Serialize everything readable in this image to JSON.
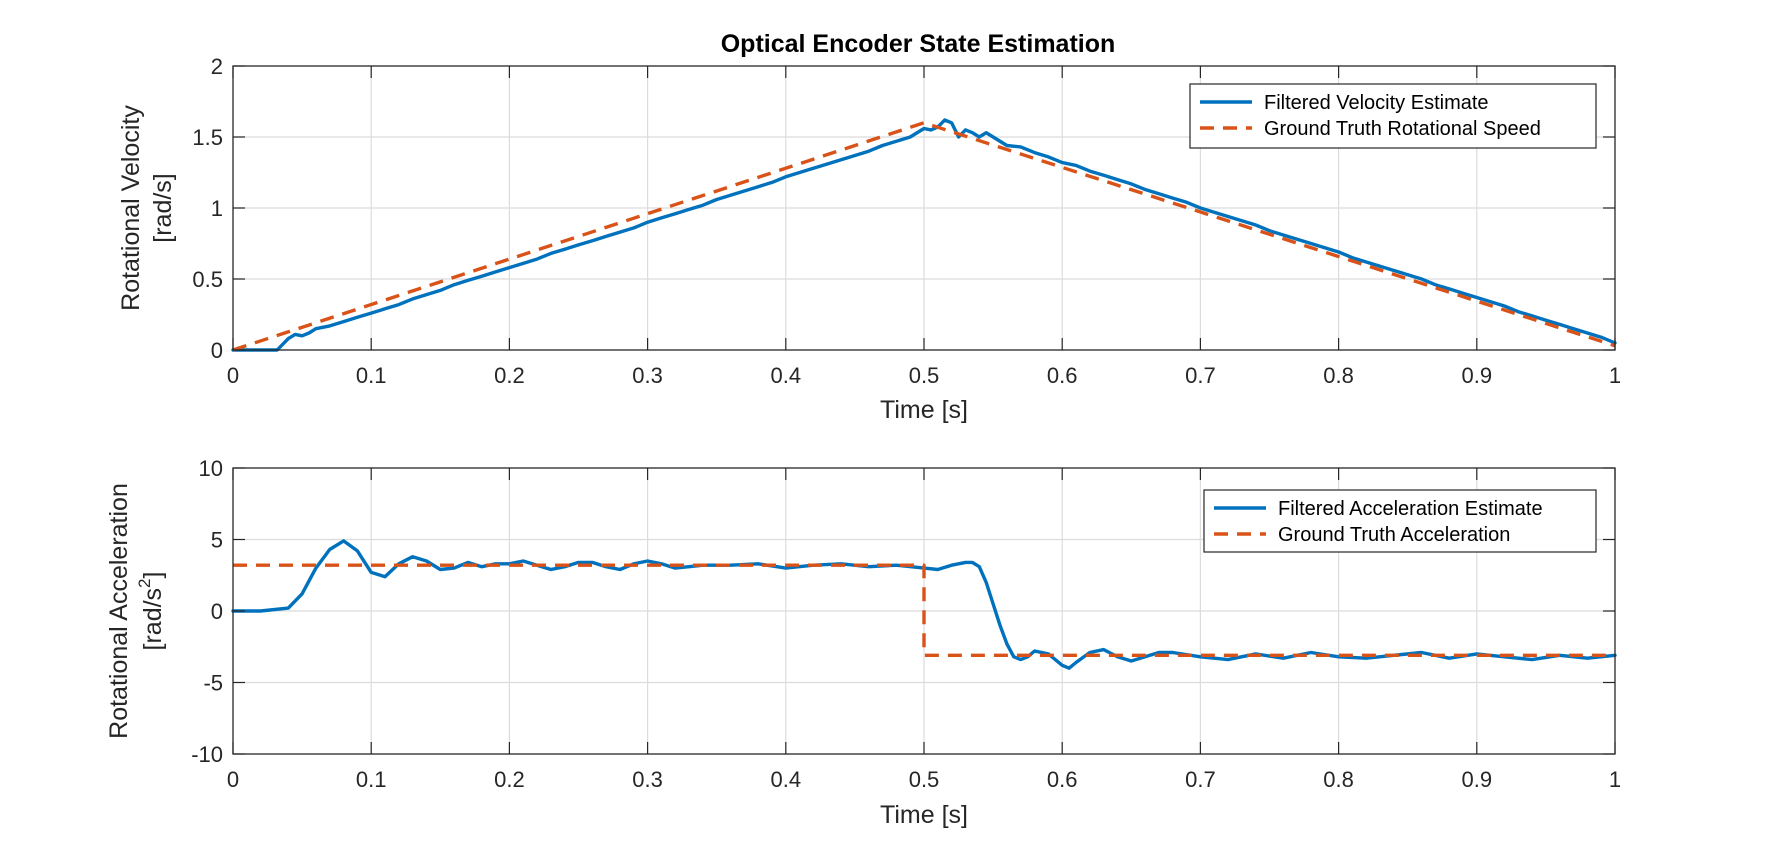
{
  "figure": {
    "title": "Optical Encoder State Estimation"
  },
  "chart_data": [
    {
      "type": "line",
      "title": "Optical Encoder State Estimation",
      "xlabel": "Time [s]",
      "ylabel_lines": [
        "Rotational Velocity",
        "[rad/s]"
      ],
      "xlim": [
        0,
        1
      ],
      "ylim": [
        0,
        2
      ],
      "xticks": [
        0,
        0.1,
        0.2,
        0.3,
        0.4,
        0.5,
        0.6,
        0.7,
        0.8,
        0.9,
        1
      ],
      "xtick_labels": [
        "0",
        "0.1",
        "0.2",
        "0.3",
        "0.4",
        "0.5",
        "0.6",
        "0.7",
        "0.8",
        "0.9",
        "1"
      ],
      "yticks": [
        0,
        0.5,
        1,
        1.5,
        2
      ],
      "ytick_labels": [
        "0",
        "0.5",
        "1",
        "1.5",
        "2"
      ],
      "grid": true,
      "legend_position": "top-right",
      "series": [
        {
          "name": "Filtered Velocity Estimate",
          "style": "solid",
          "color": "#0072BD",
          "x": [
            0,
            0.02,
            0.032,
            0.04,
            0.045,
            0.05,
            0.055,
            0.06,
            0.07,
            0.08,
            0.09,
            0.1,
            0.11,
            0.12,
            0.13,
            0.14,
            0.15,
            0.16,
            0.17,
            0.18,
            0.19,
            0.2,
            0.21,
            0.22,
            0.23,
            0.24,
            0.25,
            0.26,
            0.27,
            0.28,
            0.29,
            0.3,
            0.31,
            0.32,
            0.33,
            0.34,
            0.35,
            0.36,
            0.37,
            0.38,
            0.39,
            0.4,
            0.41,
            0.42,
            0.43,
            0.44,
            0.45,
            0.46,
            0.47,
            0.48,
            0.49,
            0.5,
            0.505,
            0.51,
            0.515,
            0.52,
            0.525,
            0.53,
            0.535,
            0.54,
            0.545,
            0.55,
            0.56,
            0.57,
            0.58,
            0.59,
            0.6,
            0.61,
            0.62,
            0.63,
            0.64,
            0.65,
            0.66,
            0.67,
            0.68,
            0.69,
            0.7,
            0.71,
            0.72,
            0.73,
            0.74,
            0.75,
            0.76,
            0.77,
            0.78,
            0.79,
            0.8,
            0.81,
            0.82,
            0.83,
            0.84,
            0.85,
            0.86,
            0.87,
            0.88,
            0.89,
            0.9,
            0.91,
            0.92,
            0.93,
            0.94,
            0.95,
            0.96,
            0.97,
            0.98,
            0.99,
            1.0
          ],
          "y": [
            0,
            0,
            0,
            0.08,
            0.11,
            0.1,
            0.12,
            0.15,
            0.17,
            0.2,
            0.23,
            0.26,
            0.29,
            0.32,
            0.36,
            0.39,
            0.42,
            0.46,
            0.49,
            0.52,
            0.55,
            0.58,
            0.61,
            0.64,
            0.68,
            0.71,
            0.74,
            0.77,
            0.8,
            0.83,
            0.86,
            0.9,
            0.93,
            0.96,
            0.99,
            1.02,
            1.06,
            1.09,
            1.12,
            1.15,
            1.18,
            1.22,
            1.25,
            1.28,
            1.31,
            1.34,
            1.37,
            1.4,
            1.44,
            1.47,
            1.5,
            1.56,
            1.55,
            1.57,
            1.62,
            1.6,
            1.5,
            1.55,
            1.53,
            1.5,
            1.53,
            1.5,
            1.44,
            1.43,
            1.39,
            1.36,
            1.32,
            1.3,
            1.26,
            1.23,
            1.2,
            1.17,
            1.13,
            1.1,
            1.07,
            1.04,
            1.0,
            0.97,
            0.94,
            0.91,
            0.88,
            0.84,
            0.81,
            0.78,
            0.75,
            0.72,
            0.69,
            0.65,
            0.62,
            0.59,
            0.56,
            0.53,
            0.5,
            0.46,
            0.43,
            0.4,
            0.37,
            0.34,
            0.31,
            0.27,
            0.24,
            0.21,
            0.18,
            0.15,
            0.12,
            0.09,
            0.05
          ]
        },
        {
          "name": "Ground Truth Rotational Speed",
          "style": "dashed",
          "color": "#D95319",
          "x": [
            0,
            0.5,
            1
          ],
          "y": [
            0,
            1.6,
            0.03
          ]
        }
      ]
    },
    {
      "type": "line",
      "title": "",
      "xlabel": "Time [s]",
      "ylabel_lines": [
        "Rotational Acceleration",
        "[rad/s",
        "2",
        "]"
      ],
      "xlim": [
        0,
        1
      ],
      "ylim": [
        -10,
        10
      ],
      "xticks": [
        0,
        0.1,
        0.2,
        0.3,
        0.4,
        0.5,
        0.6,
        0.7,
        0.8,
        0.9,
        1
      ],
      "xtick_labels": [
        "0",
        "0.1",
        "0.2",
        "0.3",
        "0.4",
        "0.5",
        "0.6",
        "0.7",
        "0.8",
        "0.9",
        "1"
      ],
      "yticks": [
        -10,
        -5,
        0,
        5,
        10
      ],
      "ytick_labels": [
        "-10",
        "-5",
        "0",
        "5",
        "10"
      ],
      "grid": true,
      "legend_position": "top-right",
      "series": [
        {
          "name": "Filtered Acceleration Estimate",
          "style": "solid",
          "color": "#0072BD",
          "x": [
            0,
            0.02,
            0.04,
            0.05,
            0.06,
            0.07,
            0.08,
            0.09,
            0.1,
            0.11,
            0.12,
            0.13,
            0.14,
            0.15,
            0.16,
            0.17,
            0.18,
            0.19,
            0.2,
            0.21,
            0.22,
            0.23,
            0.24,
            0.25,
            0.26,
            0.27,
            0.28,
            0.29,
            0.3,
            0.31,
            0.32,
            0.33,
            0.34,
            0.36,
            0.38,
            0.4,
            0.42,
            0.44,
            0.46,
            0.48,
            0.5,
            0.51,
            0.52,
            0.53,
            0.535,
            0.54,
            0.545,
            0.55,
            0.555,
            0.56,
            0.565,
            0.57,
            0.575,
            0.58,
            0.59,
            0.6,
            0.605,
            0.61,
            0.62,
            0.63,
            0.64,
            0.65,
            0.66,
            0.67,
            0.68,
            0.7,
            0.72,
            0.74,
            0.76,
            0.78,
            0.8,
            0.82,
            0.84,
            0.86,
            0.88,
            0.9,
            0.92,
            0.94,
            0.96,
            0.98,
            1.0
          ],
          "y": [
            0,
            0,
            0.2,
            1.2,
            3.0,
            4.3,
            4.9,
            4.2,
            2.7,
            2.4,
            3.3,
            3.8,
            3.5,
            2.9,
            3.0,
            3.4,
            3.1,
            3.3,
            3.3,
            3.5,
            3.2,
            2.9,
            3.1,
            3.4,
            3.4,
            3.1,
            2.9,
            3.3,
            3.5,
            3.3,
            3.0,
            3.1,
            3.2,
            3.2,
            3.3,
            3.0,
            3.2,
            3.3,
            3.1,
            3.2,
            3.0,
            2.9,
            3.2,
            3.4,
            3.4,
            3.1,
            2.0,
            0.5,
            -1.0,
            -2.3,
            -3.2,
            -3.4,
            -3.2,
            -2.8,
            -3.0,
            -3.8,
            -4.0,
            -3.6,
            -2.9,
            -2.7,
            -3.2,
            -3.5,
            -3.2,
            -2.9,
            -2.9,
            -3.2,
            -3.4,
            -3.0,
            -3.3,
            -2.9,
            -3.2,
            -3.3,
            -3.1,
            -2.9,
            -3.3,
            -3.0,
            -3.2,
            -3.4,
            -3.1,
            -3.3,
            -3.1
          ]
        },
        {
          "name": "Ground Truth Acceleration",
          "style": "dashed",
          "color": "#D95319",
          "x": [
            0,
            0.5,
            0.5,
            1
          ],
          "y": [
            3.2,
            3.2,
            -3.1,
            -3.1
          ]
        }
      ]
    }
  ]
}
